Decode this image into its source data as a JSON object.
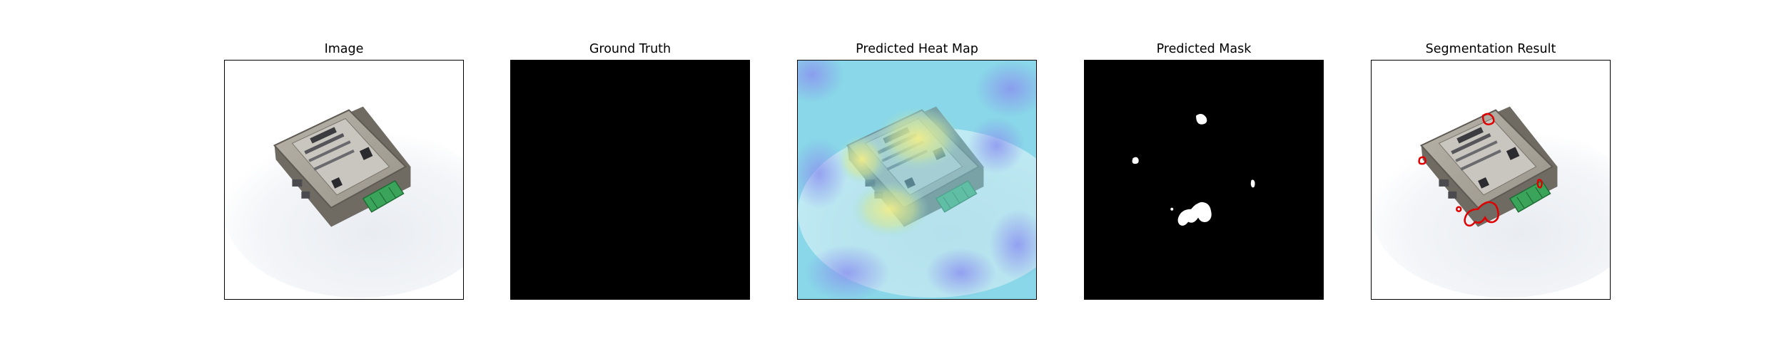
{
  "figure": {
    "panels": [
      {
        "title": "Image"
      },
      {
        "title": "Ground Truth"
      },
      {
        "title": "Predicted Heat Map"
      },
      {
        "title": "Predicted Mask"
      },
      {
        "title": "Segmentation Result"
      }
    ]
  },
  "colors": {
    "background": "#ffffff",
    "mask_bg": "#000000",
    "mask_fg": "#ffffff",
    "contour": "#e00000",
    "heat_low": "#8fd6e8",
    "heat_mid": "#8ab4ea",
    "heat_hot": "#e7e88f",
    "device_body": "#8e8a80",
    "terminal_green": "#3aa55a"
  },
  "icons": [
    "electronic-device-photo"
  ]
}
